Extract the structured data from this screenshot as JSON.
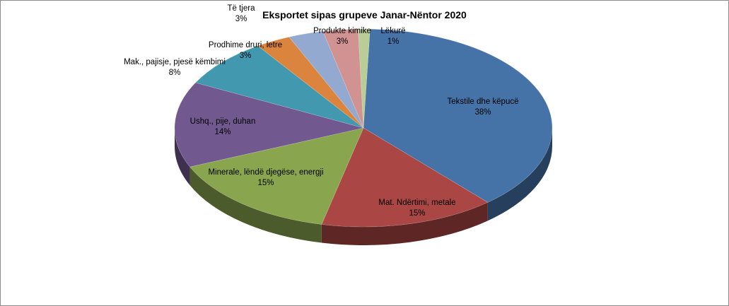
{
  "chart_data": {
    "type": "pie",
    "title": "Eksportet sipas grupeve Janar-Nëntor 2020",
    "three_d": true,
    "legend": "none",
    "slices": [
      {
        "label": "Tekstile dhe këpucë",
        "value": 38,
        "display": "38%",
        "color": "#4572A7"
      },
      {
        "label": "Mat. Ndërtimi, metale",
        "value": 15,
        "display": "15%",
        "color": "#AA4643"
      },
      {
        "label": "Minerale, lëndë djegëse, energji",
        "value": 15,
        "display": "15%",
        "color": "#89A54E"
      },
      {
        "label": "Ushq., pije, duhan",
        "value": 14,
        "display": "14%",
        "color": "#71588F"
      },
      {
        "label": "Mak., pajisje, pjesë këmbimi",
        "value": 8,
        "display": "8%",
        "color": "#4198AF"
      },
      {
        "label": "Prodhime druri, letre",
        "value": 3,
        "display": "3%",
        "color": "#DB843D"
      },
      {
        "label": "Të tjera",
        "value": 3,
        "display": "3%",
        "color": "#93A9CF"
      },
      {
        "label": "Produkte kimike",
        "value": 3,
        "display": "3%",
        "color": "#D19392"
      },
      {
        "label": "Lëkurë",
        "value": 1,
        "display": "1%",
        "color": "#B9CD96"
      }
    ]
  }
}
